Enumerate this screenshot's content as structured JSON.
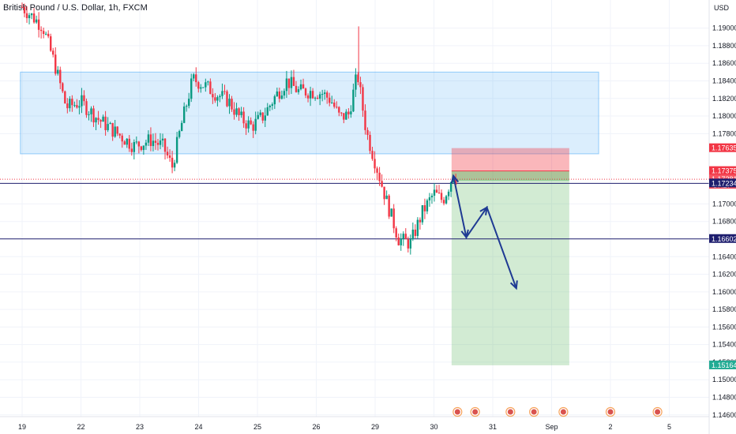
{
  "header": {
    "title": "British Pound / U.S. Dollar, 1h, FXCM"
  },
  "chart_data": {
    "type": "candlestick",
    "currency": "USD",
    "ylim": [
      1.1458,
      1.1932
    ],
    "y_ticks": [
      "1.19000",
      "1.18800",
      "1.18600",
      "1.18400",
      "1.18200",
      "1.18000",
      "1.17800",
      "1.17000",
      "1.16800",
      "1.16400",
      "1.16200",
      "1.16000",
      "1.15800",
      "1.15600",
      "1.15400",
      "1.15200",
      "1.15000",
      "1.14800",
      "1.14600"
    ],
    "x_ticks": [
      {
        "label": "19",
        "t": 0
      },
      {
        "label": "22",
        "t": 1
      },
      {
        "label": "23",
        "t": 2
      },
      {
        "label": "24",
        "t": 3
      },
      {
        "label": "25",
        "t": 4
      },
      {
        "label": "26",
        "t": 5
      },
      {
        "label": "29",
        "t": 6
      },
      {
        "label": "30",
        "t": 7
      },
      {
        "label": "31",
        "t": 8
      },
      {
        "label": "Sep",
        "t": 9
      },
      {
        "label": "2",
        "t": 10
      },
      {
        "label": "5",
        "t": 11
      }
    ],
    "price_tags": [
      {
        "value": "1.17635",
        "price": 1.17635,
        "color": "#f23645"
      },
      {
        "value": "1.17375",
        "price": 1.17375,
        "color": "#f23645"
      },
      {
        "value": "1.17281",
        "price": 1.17281,
        "color": "#f7525f",
        "sub": "57:27"
      },
      {
        "value": "1.17234",
        "price": 1.17234,
        "color": "#1e1e6e"
      },
      {
        "value": "1.16602",
        "price": 1.16602,
        "color": "#1e1e6e"
      },
      {
        "value": "1.15164",
        "price": 1.15164,
        "color": "#22ab94"
      }
    ],
    "zone": {
      "price_top": 1.185,
      "price_bottom": 1.1757,
      "t_start": -0.03,
      "t_end": 9.8
    },
    "horizontal_lines": [
      {
        "price": 1.17234,
        "color": "#1e1e6e"
      },
      {
        "price": 1.16602,
        "color": "#1e1e6e"
      }
    ],
    "position": {
      "entry": 1.17281,
      "stop": 1.17635,
      "stop_inner": 1.17375,
      "target": 1.15164,
      "t_start": 7.3,
      "t_end": 9.3
    },
    "path_points": [
      {
        "t": 7.33,
        "p": 1.1732
      },
      {
        "t": 7.55,
        "p": 1.1662
      },
      {
        "t": 7.9,
        "p": 1.1696
      },
      {
        "t": 8.4,
        "p": 1.1604
      }
    ],
    "price_path": [
      [
        0.0,
        1.1924
      ],
      [
        0.35,
        1.1902
      ],
      [
        0.55,
        1.186
      ],
      [
        0.75,
        1.181
      ],
      [
        1.0,
        1.1816
      ],
      [
        1.3,
        1.1796
      ],
      [
        1.6,
        1.1781
      ],
      [
        1.9,
        1.1766
      ],
      [
        2.2,
        1.1773
      ],
      [
        2.4,
        1.1765
      ],
      [
        2.55,
        1.1742
      ],
      [
        2.7,
        1.1788
      ],
      [
        2.9,
        1.1842
      ],
      [
        3.1,
        1.1835
      ],
      [
        3.3,
        1.1825
      ],
      [
        3.5,
        1.1818
      ],
      [
        3.7,
        1.1798
      ],
      [
        3.9,
        1.1788
      ],
      [
        4.1,
        1.18
      ],
      [
        4.3,
        1.1822
      ],
      [
        4.5,
        1.184
      ],
      [
        4.7,
        1.1828
      ],
      [
        4.9,
        1.1828
      ],
      [
        5.1,
        1.1826
      ],
      [
        5.25,
        1.1818
      ],
      [
        5.4,
        1.1798
      ],
      [
        5.55,
        1.1802
      ],
      [
        5.7,
        1.1848
      ],
      [
        5.85,
        1.1782
      ],
      [
        6.0,
        1.1748
      ],
      [
        6.2,
        1.1702
      ],
      [
        6.4,
        1.166
      ],
      [
        6.6,
        1.1655
      ],
      [
        6.8,
        1.169
      ],
      [
        7.0,
        1.1712
      ],
      [
        7.15,
        1.1704
      ],
      [
        7.25,
        1.172
      ],
      [
        7.33,
        1.1735
      ],
      [
        7.38,
        1.1728
      ]
    ],
    "events": [
      7.4,
      7.7,
      8.3,
      8.7,
      9.2,
      10.0,
      10.8
    ]
  }
}
